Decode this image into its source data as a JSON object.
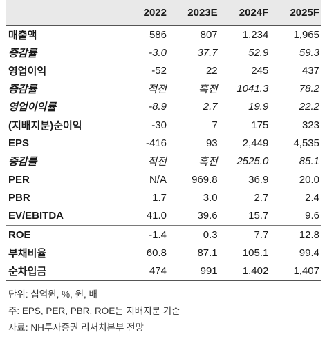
{
  "columns": [
    "",
    "2022",
    "2023E",
    "2024F",
    "2025F"
  ],
  "groups": [
    {
      "rows": [
        {
          "label": "매출액",
          "bold": true,
          "italic": false,
          "values": [
            "586",
            "807",
            "1,234",
            "1,965"
          ]
        },
        {
          "label": "증감률",
          "bold": true,
          "italic": true,
          "values": [
            "-3.0",
            "37.7",
            "52.9",
            "59.3"
          ]
        },
        {
          "label": "영업이익",
          "bold": true,
          "italic": false,
          "values": [
            "-52",
            "22",
            "245",
            "437"
          ]
        },
        {
          "label": "증감률",
          "bold": true,
          "italic": true,
          "values": [
            "적전",
            "흑전",
            "1041.3",
            "78.2"
          ]
        },
        {
          "label": "영업이익률",
          "bold": true,
          "italic": true,
          "values": [
            "-8.9",
            "2.7",
            "19.9",
            "22.2"
          ]
        },
        {
          "label": "(지배지분)순이익",
          "bold": true,
          "italic": false,
          "values": [
            "-30",
            "7",
            "175",
            "323"
          ]
        },
        {
          "label": "EPS",
          "bold": true,
          "italic": false,
          "values": [
            "-416",
            "93",
            "2,449",
            "4,535"
          ]
        },
        {
          "label": "증감률",
          "bold": true,
          "italic": true,
          "values": [
            "적전",
            "흑전",
            "2525.0",
            "85.1"
          ]
        }
      ]
    },
    {
      "rows": [
        {
          "label": "PER",
          "bold": true,
          "italic": false,
          "values": [
            "N/A",
            "969.8",
            "36.9",
            "20.0"
          ]
        },
        {
          "label": "PBR",
          "bold": true,
          "italic": false,
          "values": [
            "1.7",
            "3.0",
            "2.7",
            "2.4"
          ]
        },
        {
          "label": "EV/EBITDA",
          "bold": true,
          "italic": false,
          "values": [
            "41.0",
            "39.6",
            "15.7",
            "9.6"
          ]
        }
      ]
    },
    {
      "rows": [
        {
          "label": "ROE",
          "bold": true,
          "italic": false,
          "values": [
            "-1.4",
            "0.3",
            "7.7",
            "12.8"
          ]
        },
        {
          "label": "부채비율",
          "bold": true,
          "italic": false,
          "values": [
            "60.8",
            "87.1",
            "105.1",
            "99.4"
          ]
        },
        {
          "label": "순차입금",
          "bold": true,
          "italic": false,
          "values": [
            "474",
            "991",
            "1,402",
            "1,407"
          ]
        }
      ]
    }
  ],
  "notes": [
    "단위: 십억원, %, 원, 배",
    "주: EPS, PER, PBR, ROE는 지배지분 기준",
    "자료: NH투자증권 리서치본부 전망"
  ]
}
